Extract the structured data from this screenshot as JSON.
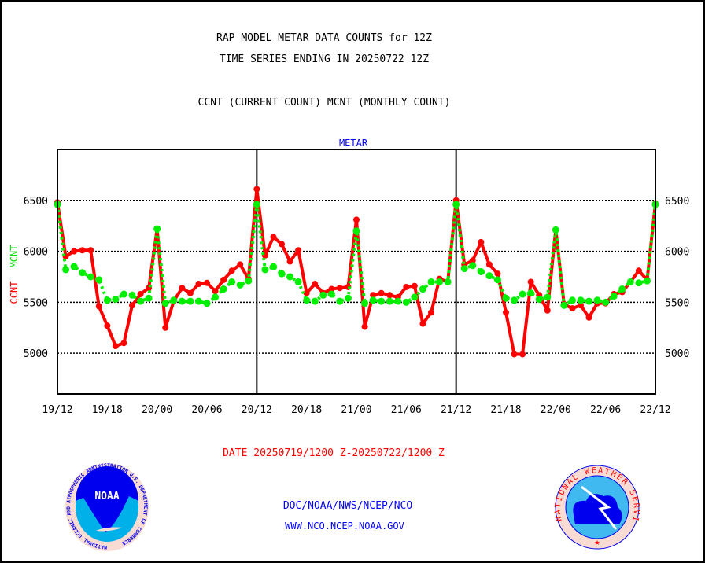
{
  "chart_data": {
    "type": "line",
    "title_lines": [
      "RAP MODEL METAR DATA COUNTS for 12Z",
      "TIME SERIES ENDING IN 20250722 12Z",
      "CCNT (CURRENT COUNT) MCNT (MONTHLY COUNT)"
    ],
    "panel_title": "METAR",
    "ylabel_parts": [
      {
        "text": "CCNT",
        "color": "#ff0000"
      },
      {
        "text": "MCNT",
        "color": "#00ee00"
      }
    ],
    "xlabel": "DATE 20250719/1200 Z-20250722/1200 Z",
    "x_hours_range": [
      0,
      72
    ],
    "x_tick_hours": [
      0,
      6,
      12,
      18,
      24,
      30,
      36,
      42,
      48,
      54,
      60,
      66,
      72
    ],
    "x_tick_labels": [
      "19/12",
      "19/18",
      "20/00",
      "20/06",
      "20/12",
      "20/18",
      "21/00",
      "21/06",
      "21/12",
      "21/18",
      "22/00",
      "22/06",
      "22/12"
    ],
    "day_separator_hours": [
      24,
      48
    ],
    "y_ticks": [
      5000,
      5500,
      6000,
      6500
    ],
    "y_tick_labels": [
      "5000",
      "5500",
      "6000",
      "6500"
    ],
    "ylim": [
      4600,
      7000
    ],
    "grid": true,
    "series": [
      {
        "name": "CCNT",
        "color": "#ff0000",
        "style": "solid",
        "values": [
          6480,
          5950,
          6000,
          6010,
          6010,
          5460,
          5270,
          5070,
          5100,
          5470,
          5580,
          5640,
          6220,
          5250,
          5510,
          5640,
          5590,
          5680,
          5690,
          5610,
          5720,
          5810,
          5870,
          5730,
          6610,
          5960,
          6140,
          6070,
          5900,
          6010,
          5590,
          5680,
          5590,
          5630,
          5640,
          5650,
          6310,
          5260,
          5570,
          5590,
          5570,
          5550,
          5650,
          5660,
          5290,
          5400,
          5730,
          5700,
          6500,
          5870,
          5910,
          6090,
          5870,
          5780,
          5400,
          4990,
          4990,
          5700,
          5570,
          5420,
          6210,
          5480,
          5440,
          5470,
          5350,
          5490,
          5490,
          5580,
          5600,
          5700,
          5810,
          5720,
          6470
        ]
      },
      {
        "name": "MCNT",
        "color": "#00ee00",
        "style": "dotted",
        "values": [
          6460,
          5820,
          5850,
          5790,
          5750,
          5720,
          5520,
          5530,
          5580,
          5570,
          5510,
          5540,
          6220,
          5490,
          5520,
          5510,
          5510,
          5510,
          5490,
          5550,
          5630,
          5700,
          5670,
          5710,
          6460,
          5820,
          5850,
          5780,
          5750,
          5700,
          5520,
          5510,
          5570,
          5580,
          5510,
          5540,
          6200,
          5490,
          5520,
          5510,
          5510,
          5510,
          5500,
          5550,
          5630,
          5700,
          5700,
          5700,
          6460,
          5830,
          5860,
          5800,
          5760,
          5720,
          5540,
          5520,
          5580,
          5590,
          5530,
          5550,
          6210,
          5470,
          5520,
          5520,
          5510,
          5520,
          5500,
          5560,
          5630,
          5700,
          5690,
          5710,
          6460
        ]
      }
    ]
  },
  "footer": {
    "line1": "DOC/NOAA/NWS/NCEP/NCO",
    "line2": "WWW.NCO.NCEP.NOAA.GOV",
    "noaa_logo_text": "NOAA",
    "noaa_ring_text": "NATIONAL OCEANIC AND ATMOSPHERIC ADMINISTRATION U.S. DEPARTMENT OF COMMERCE",
    "nws_ring_text": "NATIONAL WEATHER SERVICE"
  }
}
